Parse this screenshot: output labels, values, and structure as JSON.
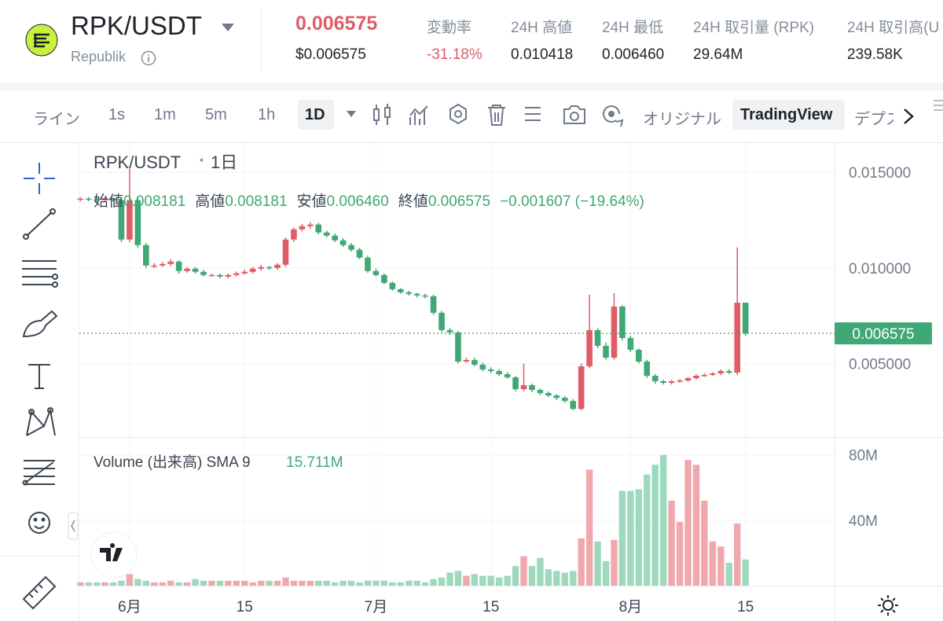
{
  "header": {
    "pair": "RPK/USDT",
    "name": "Republik",
    "price": "0.006575",
    "price_usd": "$0.006575",
    "stats": [
      {
        "label": "変動率",
        "value": "-31.18%"
      },
      {
        "label": "24H 高値",
        "value": "0.010418"
      },
      {
        "label": "24H 最低",
        "value": "0.006460"
      },
      {
        "label": "24H 取引量 (RPK)",
        "value": "29.64M"
      },
      {
        "label": "24H 取引高(U",
        "value": "239.58K"
      }
    ]
  },
  "toolbar": {
    "intervals": [
      "ライン",
      "1s",
      "1m",
      "5m",
      "1h",
      "1D"
    ],
    "views": [
      "オリジナル",
      "TradingView",
      "デプス"
    ]
  },
  "chart_data": {
    "type": "candlestick",
    "title": "RPK/USDT",
    "interval": "1日",
    "legend": [
      {
        "label": "始値",
        "value": "0.008181"
      },
      {
        "label": "高値",
        "value": "0.008181"
      },
      {
        "label": "安値",
        "value": "0.006460"
      },
      {
        "label": "終値",
        "value": "0.006575"
      }
    ],
    "change": "−0.001607 (−19.64%)",
    "volume_label": "Volume (出来高) SMA 9",
    "volume_sma": "15.711M",
    "last_price_label": "0.006575",
    "up_color": "#e05c67",
    "down_color": "#3fa874",
    "volume_up_color": "#f0a8ad",
    "volume_down_color": "#9dd9bd",
    "categories": [
      null,
      null,
      null,
      null,
      null,
      null,
      null,
      null,
      null,
      null,
      null,
      null,
      null,
      null,
      null,
      null,
      null,
      null,
      null,
      null,
      null,
      null,
      null,
      null,
      null,
      null,
      null,
      null,
      null,
      null,
      null,
      null,
      null,
      null,
      null,
      null,
      null,
      null,
      null,
      null,
      null,
      null,
      null,
      null,
      null,
      null,
      null,
      null,
      null,
      null,
      null,
      null,
      null,
      null,
      null,
      null,
      null,
      null,
      null,
      null,
      null,
      null,
      null,
      null,
      null,
      null,
      null,
      null,
      null,
      null,
      null,
      null,
      null,
      null,
      null,
      null,
      null,
      null,
      null,
      null,
      null,
      null
    ],
    "open": [
      0.01358,
      0.013621,
      0.01358,
      0.013538,
      0.013621,
      0.013538,
      0.011481,
      0.013538,
      0.011193,
      0.010123,
      0.010123,
      0.010205,
      0.010329,
      0.009835,
      0.009958,
      0.009794,
      0.009629,
      0.009629,
      0.009547,
      0.009629,
      0.009711,
      0.009794,
      0.009958,
      0.010041,
      0.01,
      0.010164,
      0.011481,
      0.012016,
      0.01218,
      0.012263,
      0.011851,
      0.011687,
      0.01144,
      0.011193,
      0.010946,
      0.010534,
      0.009835,
      0.009629,
      0.009218,
      0.008888,
      0.008724,
      0.008642,
      0.008559,
      0.008518,
      0.007654,
      0.006749,
      0.006625,
      0.005103,
      0.005185,
      0.004938,
      0.004691,
      0.004609,
      0.004444,
      0.00428,
      0.003662,
      0.003868,
      0.003621,
      0.003457,
      0.003333,
      0.00321,
      0.003045,
      0.002634,
      0.004856,
      0.006749,
      0.005926,
      0.005308,
      0.007983,
      0.006337,
      0.00572,
      0.005103,
      0.004362,
      0.004074,
      0.003992,
      0.004074,
      0.004115,
      0.004238,
      0.004362,
      0.004403,
      0.004485,
      0.004609,
      0.004527,
      0.008181
    ],
    "high": [
      0.0137,
      0.0137,
      0.01365,
      0.0137,
      0.0137,
      0.01365,
      0.015184,
      0.01365,
      0.0113,
      0.01025,
      0.0103,
      0.01045,
      0.0104,
      0.01005,
      0.01005,
      0.0099,
      0.0097,
      0.0097,
      0.0097,
      0.0098,
      0.0099,
      0.01005,
      0.01015,
      0.0101,
      0.01025,
      0.0116,
      0.0121,
      0.0123,
      0.0124,
      0.01235,
      0.01195,
      0.0118,
      0.01155,
      0.0113,
      0.01105,
      0.01065,
      0.00995,
      0.0097,
      0.0093,
      0.00895,
      0.0088,
      0.0087,
      0.00865,
      0.0086,
      0.00775,
      0.00685,
      0.0067,
      0.0053,
      0.0053,
      0.00505,
      0.0048,
      0.0047,
      0.00455,
      0.00435,
      0.005,
      0.00395,
      0.0037,
      0.00355,
      0.0034,
      0.0033,
      0.00315,
      0.005,
      0.0086,
      0.00685,
      0.0061,
      0.00868,
      0.00805,
      0.00645,
      0.0058,
      0.0052,
      0.00445,
      0.00415,
      0.00415,
      0.0042,
      0.0043,
      0.00445,
      0.0045,
      0.00455,
      0.0047,
      0.0047,
      0.01107,
      0.008181
    ],
    "low": [
      0.01348,
      0.01348,
      0.01345,
      0.01345,
      0.01345,
      0.01135,
      0.01135,
      0.01105,
      0.01,
      0.01,
      0.01005,
      0.0101,
      0.0097,
      0.00975,
      0.0097,
      0.00955,
      0.00955,
      0.00945,
      0.00945,
      0.00955,
      0.00965,
      0.0097,
      0.00985,
      0.0099,
      0.0099,
      0.01005,
      0.01135,
      0.0119,
      0.01205,
      0.01175,
      0.0116,
      0.01135,
      0.0111,
      0.01085,
      0.01045,
      0.00975,
      0.00955,
      0.00915,
      0.0088,
      0.00865,
      0.00855,
      0.00845,
      0.0084,
      0.00755,
      0.00665,
      0.0065,
      0.005,
      0.00505,
      0.00485,
      0.0046,
      0.0045,
      0.00435,
      0.0042,
      0.00355,
      0.00355,
      0.0035,
      0.00335,
      0.00325,
      0.0031,
      0.00295,
      0.00255,
      0.00255,
      0.00475,
      0.0058,
      0.0052,
      0.0052,
      0.0062,
      0.0056,
      0.005,
      0.00425,
      0.00395,
      0.0039,
      0.0039,
      0.004,
      0.00405,
      0.00415,
      0.0043,
      0.00435,
      0.0044,
      0.00445,
      0.0044,
      0.00646
    ],
    "close": [
      0.013621,
      0.01358,
      0.013538,
      0.013621,
      0.013538,
      0.011481,
      0.013538,
      0.011193,
      0.010123,
      0.010123,
      0.010205,
      0.010329,
      0.009835,
      0.009958,
      0.009794,
      0.009629,
      0.009629,
      0.009547,
      0.009629,
      0.009711,
      0.009794,
      0.009958,
      0.010041,
      0.01,
      0.010164,
      0.011481,
      0.012016,
      0.01218,
      0.012263,
      0.011851,
      0.011687,
      0.01144,
      0.011193,
      0.010946,
      0.010534,
      0.009835,
      0.009629,
      0.009218,
      0.008888,
      0.008724,
      0.008642,
      0.008559,
      0.008518,
      0.007654,
      0.006749,
      0.006625,
      0.005103,
      0.005185,
      0.004938,
      0.004691,
      0.004609,
      0.004444,
      0.00428,
      0.003662,
      0.003868,
      0.003621,
      0.003457,
      0.003333,
      0.00321,
      0.003045,
      0.002634,
      0.004856,
      0.006749,
      0.005926,
      0.005308,
      0.007983,
      0.006337,
      0.00572,
      0.005103,
      0.004362,
      0.004074,
      0.003992,
      0.004074,
      0.004115,
      0.004238,
      0.004362,
      0.004403,
      0.004485,
      0.004609,
      0.004527,
      0.008181,
      0.006575
    ],
    "volume": [
      2,
      2,
      2,
      2,
      2,
      3,
      7,
      4,
      3,
      2,
      2,
      3,
      2,
      2,
      4,
      3,
      3,
      3,
      3,
      3,
      3,
      2,
      3,
      3,
      3,
      5,
      3,
      3,
      3,
      3,
      3,
      2,
      3,
      3,
      2,
      3,
      3,
      3,
      2,
      2,
      3,
      3,
      2,
      4,
      5,
      8,
      9,
      6,
      7,
      6,
      6,
      5,
      6,
      12,
      18,
      12,
      17,
      10,
      9,
      8,
      9,
      29,
      71,
      27,
      15,
      28,
      58,
      58,
      59,
      68,
      74,
      80,
      52,
      39,
      77,
      74,
      52,
      27,
      24,
      14,
      38,
      16
    ],
    "ylim": [
      0.0012,
      0.0164
    ],
    "yticks": [
      {
        "value": 0.005,
        "label": "0.005000"
      },
      {
        "value": 0.01,
        "label": "0.010000"
      },
      {
        "value": 0.015,
        "label": "0.015000"
      }
    ],
    "volume_lim": [
      0,
      89
    ],
    "volume_ticks": [
      {
        "value": 40,
        "label": "40M"
      },
      {
        "value": 80,
        "label": "80M"
      }
    ],
    "xticks": [
      {
        "value": 6,
        "label": "6月"
      },
      {
        "value": 20,
        "label": "15"
      },
      {
        "value": 36,
        "label": "7月"
      },
      {
        "value": 50,
        "label": "15"
      },
      {
        "value": 67,
        "label": "8月"
      },
      {
        "value": 81,
        "label": "15"
      }
    ]
  }
}
